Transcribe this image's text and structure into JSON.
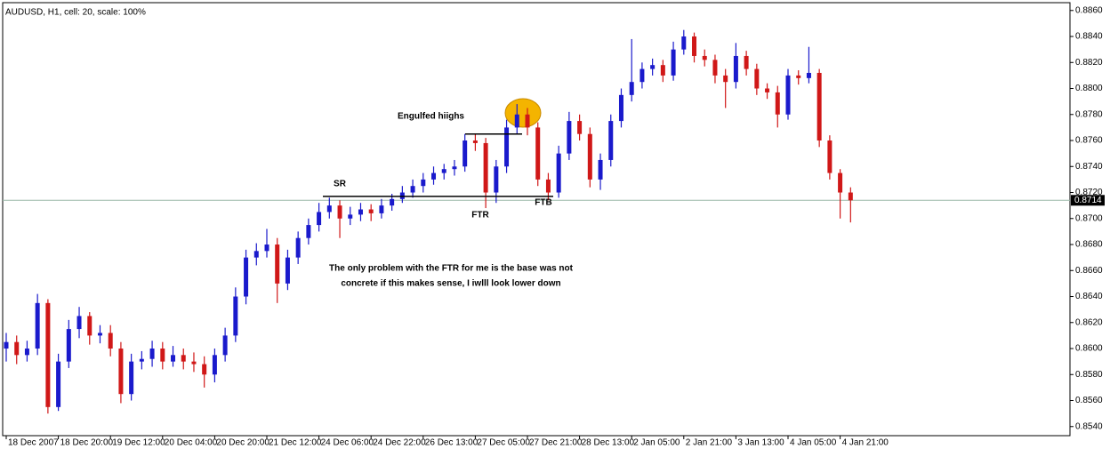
{
  "chart_data": {
    "type": "candlestick",
    "title": "AUDUSD, H1, cell: 20, scale: 100%",
    "categories": [
      "18 Dec 2007",
      null,
      null,
      null,
      null,
      "18 Dec 20:00",
      null,
      null,
      null,
      null,
      "19 Dec 12:00",
      null,
      null,
      null,
      null,
      "20 Dec 04:00",
      null,
      null,
      null,
      null,
      "20 Dec 20:00",
      null,
      null,
      null,
      null,
      "21 Dec 12:00",
      null,
      null,
      null,
      null,
      "24 Dec 06:00",
      null,
      null,
      null,
      null,
      "24 Dec 22:00",
      null,
      null,
      null,
      null,
      "26 Dec 13:00",
      null,
      null,
      null,
      null,
      "27 Dec 05:00",
      null,
      null,
      null,
      null,
      "27 Dec 21:00",
      null,
      null,
      null,
      null,
      "28 Dec 13:00",
      null,
      null,
      null,
      null,
      "2 Jan 05:00",
      null,
      null,
      null,
      null,
      "2 Jan 21:00",
      null,
      null,
      null,
      null,
      "3 Jan 13:00",
      null,
      null,
      null,
      null,
      "4 Jan 05:00",
      null,
      null,
      null,
      null,
      "4 Jan 21:00",
      null
    ],
    "open": [
      0.86,
      0.8605,
      0.8595,
      0.86,
      0.8635,
      0.8555,
      0.859,
      0.8615,
      0.8625,
      0.861,
      0.8612,
      0.86,
      0.8565,
      0.859,
      0.8592,
      0.86,
      0.859,
      0.8595,
      0.859,
      0.8588,
      0.858,
      0.8595,
      0.861,
      0.864,
      0.867,
      0.8675,
      0.868,
      0.865,
      0.867,
      0.8685,
      0.8695,
      0.8705,
      0.871,
      0.87,
      0.8703,
      0.8707,
      0.8704,
      0.871,
      0.8715,
      0.872,
      0.8725,
      0.873,
      0.8735,
      0.8738,
      0.874,
      0.876,
      0.8758,
      0.872,
      0.874,
      0.877,
      0.878,
      0.877,
      0.873,
      0.872,
      0.875,
      0.8775,
      0.8765,
      0.873,
      0.8745,
      0.8775,
      0.8795,
      0.8805,
      0.8815,
      0.8818,
      0.881,
      0.883,
      0.884,
      0.8825,
      0.8822,
      0.881,
      0.8805,
      0.8825,
      0.8815,
      0.88,
      0.8797,
      0.878,
      0.881,
      0.8808,
      0.8812,
      0.876,
      0.8735,
      0.872
    ],
    "high": [
      0.8612,
      0.861,
      0.8606,
      0.8642,
      0.8638,
      0.8596,
      0.8622,
      0.8632,
      0.8628,
      0.8618,
      0.8618,
      0.8605,
      0.8596,
      0.8598,
      0.8606,
      0.8605,
      0.8602,
      0.86,
      0.8597,
      0.8594,
      0.86,
      0.8616,
      0.8647,
      0.8676,
      0.8681,
      0.8692,
      0.8685,
      0.8676,
      0.869,
      0.87,
      0.8712,
      0.8716,
      0.8714,
      0.8709,
      0.8712,
      0.8711,
      0.8715,
      0.8719,
      0.8725,
      0.873,
      0.8735,
      0.874,
      0.8742,
      0.8745,
      0.8765,
      0.8765,
      0.8762,
      0.8745,
      0.8776,
      0.8788,
      0.8785,
      0.8774,
      0.8735,
      0.8756,
      0.8782,
      0.878,
      0.877,
      0.875,
      0.878,
      0.88,
      0.8838,
      0.882,
      0.8823,
      0.8822,
      0.8836,
      0.8845,
      0.8843,
      0.883,
      0.8826,
      0.8815,
      0.8835,
      0.8829,
      0.8819,
      0.8804,
      0.8802,
      0.8815,
      0.8814,
      0.8832,
      0.8815,
      0.8764,
      0.8738,
      0.8724
    ],
    "low": [
      0.859,
      0.8588,
      0.859,
      0.8595,
      0.855,
      0.8552,
      0.8585,
      0.8608,
      0.8603,
      0.8604,
      0.8594,
      0.8558,
      0.856,
      0.8584,
      0.8586,
      0.8584,
      0.8586,
      0.8584,
      0.8582,
      0.857,
      0.8574,
      0.859,
      0.8605,
      0.8634,
      0.8664,
      0.867,
      0.8635,
      0.8645,
      0.8665,
      0.868,
      0.869,
      0.87,
      0.8685,
      0.8695,
      0.8698,
      0.8698,
      0.87,
      0.8706,
      0.8712,
      0.8716,
      0.872,
      0.8726,
      0.873,
      0.8733,
      0.8736,
      0.8752,
      0.8708,
      0.8712,
      0.8735,
      0.8765,
      0.8764,
      0.8725,
      0.8714,
      0.8716,
      0.8745,
      0.876,
      0.8724,
      0.8722,
      0.874,
      0.877,
      0.879,
      0.88,
      0.881,
      0.8805,
      0.8806,
      0.8826,
      0.882,
      0.8817,
      0.8804,
      0.8785,
      0.88,
      0.881,
      0.8795,
      0.8792,
      0.877,
      0.8776,
      0.8803,
      0.8804,
      0.8755,
      0.873,
      0.87,
      0.8697
    ],
    "close": [
      0.8605,
      0.8595,
      0.86,
      0.8635,
      0.8555,
      0.859,
      0.8615,
      0.8625,
      0.861,
      0.8612,
      0.86,
      0.8565,
      0.859,
      0.8592,
      0.86,
      0.859,
      0.8595,
      0.859,
      0.8588,
      0.858,
      0.8595,
      0.861,
      0.864,
      0.867,
      0.8675,
      0.868,
      0.865,
      0.867,
      0.8685,
      0.8695,
      0.8705,
      0.871,
      0.87,
      0.8703,
      0.8707,
      0.8704,
      0.871,
      0.8715,
      0.872,
      0.8725,
      0.873,
      0.8735,
      0.8738,
      0.874,
      0.876,
      0.8758,
      0.872,
      0.874,
      0.877,
      0.878,
      0.877,
      0.873,
      0.872,
      0.875,
      0.8775,
      0.8765,
      0.873,
      0.8745,
      0.8775,
      0.8795,
      0.8805,
      0.8815,
      0.8818,
      0.881,
      0.883,
      0.884,
      0.8825,
      0.8822,
      0.881,
      0.8805,
      0.8825,
      0.8815,
      0.88,
      0.8797,
      0.878,
      0.881,
      0.8808,
      0.8812,
      0.876,
      0.8735,
      0.872,
      0.8714
    ],
    "up_color": "#1a1acc",
    "down_color": "#d01818",
    "ylim": [
      0.8533,
      0.8866
    ],
    "yticks": [
      {
        "value": 0.854,
        "label": "0.8540"
      },
      {
        "value": 0.856,
        "label": "0.8560"
      },
      {
        "value": 0.858,
        "label": "0.8580"
      },
      {
        "value": 0.86,
        "label": "0.8600"
      },
      {
        "value": 0.862,
        "label": "0.8620"
      },
      {
        "value": 0.864,
        "label": "0.8640"
      },
      {
        "value": 0.866,
        "label": "0.8660"
      },
      {
        "value": 0.868,
        "label": "0.8680"
      },
      {
        "value": 0.87,
        "label": "0.8700"
      },
      {
        "value": 0.872,
        "label": "0.8720"
      },
      {
        "value": 0.874,
        "label": "0.8740"
      },
      {
        "value": 0.876,
        "label": "0.8760"
      },
      {
        "value": 0.878,
        "label": "0.8780"
      },
      {
        "value": 0.88,
        "label": "0.8800"
      },
      {
        "value": 0.882,
        "label": "0.8820"
      },
      {
        "value": 0.884,
        "label": "0.8840"
      },
      {
        "value": 0.886,
        "label": "0.8860"
      }
    ],
    "current_price": 0.8714,
    "levels": [
      0.8717,
      0.8765
    ],
    "annotations": [
      "Engulfed hiighs",
      "SR",
      "FTR",
      "FTB",
      "The only problem with the FTR for me is the base was not",
      "concrete if this makes sense, I iwlll look lower down"
    ]
  }
}
